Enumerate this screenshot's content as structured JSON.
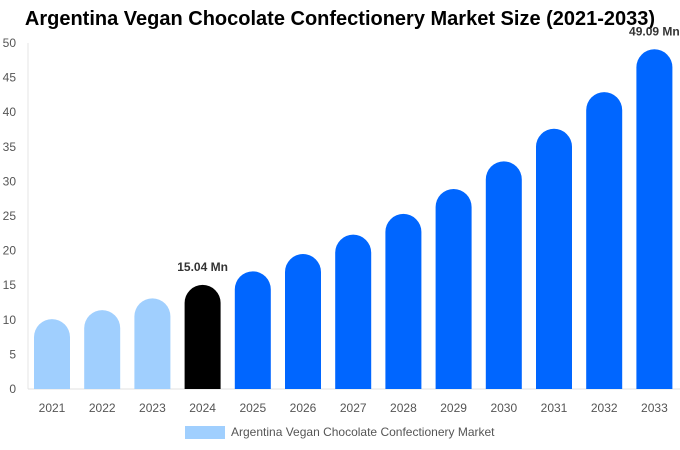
{
  "chart_data": {
    "type": "bar",
    "title": "Argentina Vegan Chocolate Confectionery Market Size (2021-2033)",
    "categories": [
      "2021",
      "2022",
      "2023",
      "2024",
      "2025",
      "2026",
      "2027",
      "2028",
      "2029",
      "2030",
      "2031",
      "2032",
      "2033"
    ],
    "series": [
      {
        "name": "Argentina Vegan Chocolate Confectionery Market",
        "values": [
          10.1,
          11.4,
          13.1,
          15.04,
          17.0,
          19.5,
          22.3,
          25.3,
          28.9,
          32.9,
          37.6,
          42.9,
          49.09
        ]
      }
    ],
    "ylim": [
      0,
      50
    ],
    "yticks": [
      0,
      5,
      10,
      15,
      20,
      25,
      30,
      35,
      40,
      45,
      50
    ],
    "data_labels": [
      {
        "index": 3,
        "text": "15.04 Mn"
      },
      {
        "index": 12,
        "text": "49.09 Mn"
      }
    ],
    "bar_colors": {
      "historical": "#a0cffe",
      "base_year": "#000000",
      "forecast": "#0066ff"
    },
    "grid": false,
    "legend": "bottom"
  }
}
